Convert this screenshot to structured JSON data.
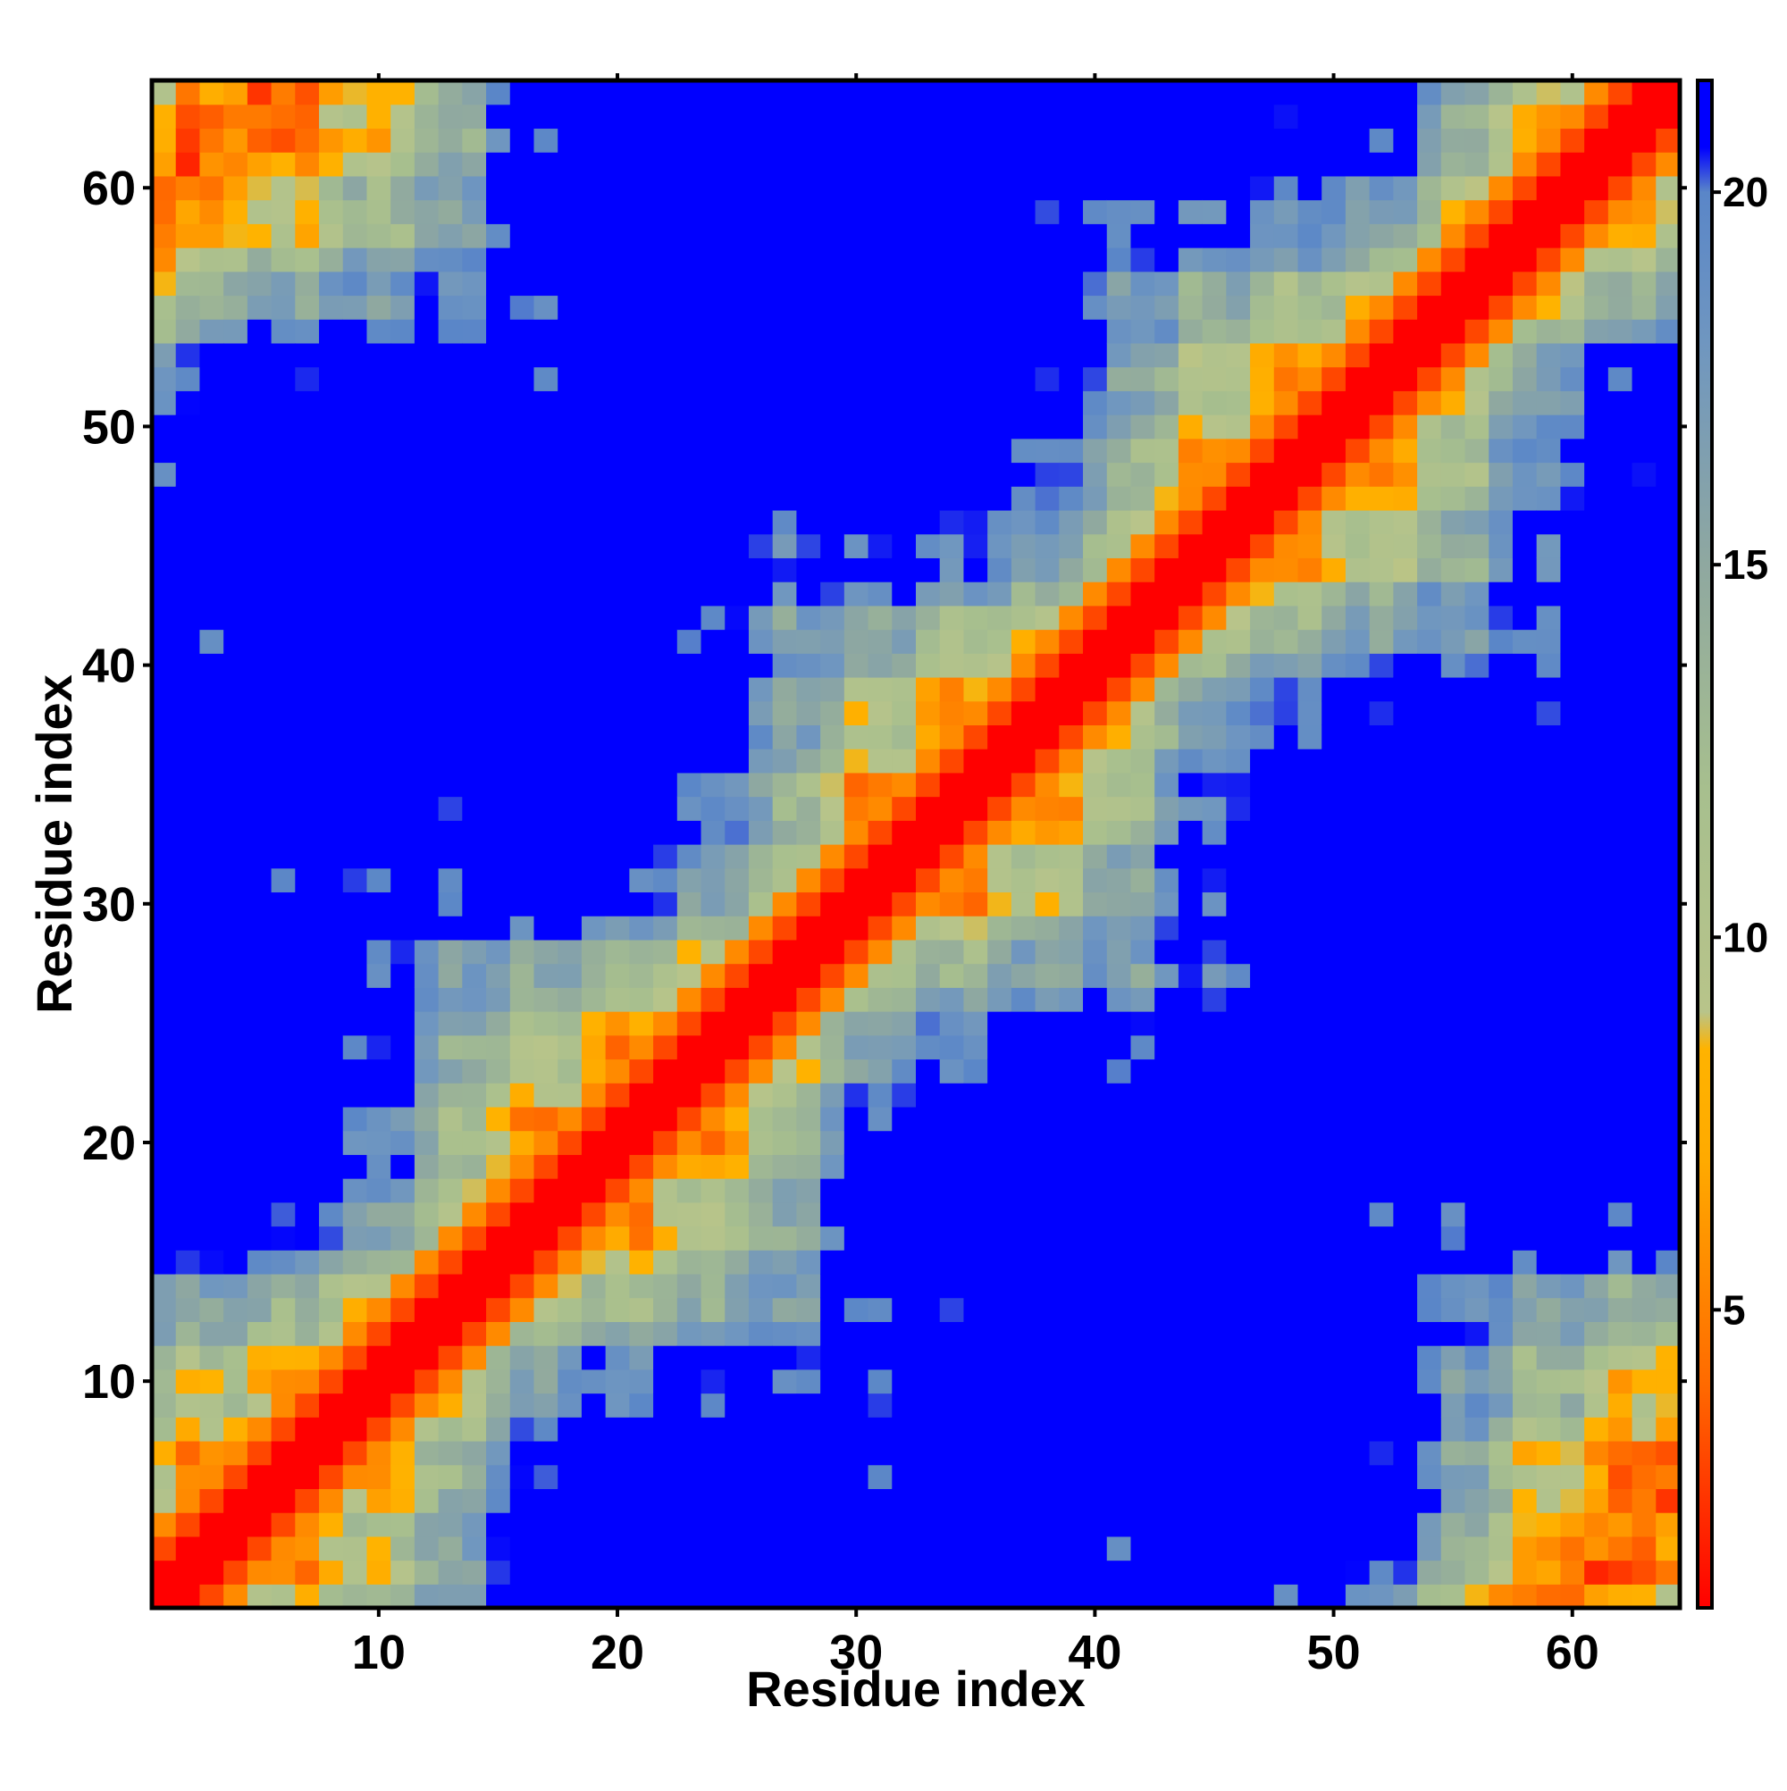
{
  "chart_data": {
    "type": "heatmap",
    "title": "",
    "xlabel": "Residue index",
    "ylabel": "Residue index",
    "n": 64,
    "xlim": [
      1,
      64
    ],
    "ylim": [
      1,
      64
    ],
    "x_ticks": [
      10,
      20,
      30,
      40,
      50,
      60
    ],
    "y_ticks": [
      10,
      20,
      30,
      40,
      50,
      60
    ],
    "x_tick_labels": [
      "10",
      "20",
      "30",
      "40",
      "50",
      "60"
    ],
    "y_tick_labels": [
      "10",
      "20",
      "30",
      "40",
      "50",
      "60"
    ],
    "grid": false,
    "legend": "colorbar-right",
    "colorbar": {
      "range": [
        1,
        21.5
      ],
      "ticks": [
        5,
        10,
        15,
        20
      ],
      "tick_labels": [
        "5",
        "10",
        "15",
        "20"
      ],
      "stops": [
        {
          "value": 1,
          "color": "#ff0000"
        },
        {
          "value": 4,
          "color": "#ff6a00"
        },
        {
          "value": 7,
          "color": "#ffaa00"
        },
        {
          "value": 8.5,
          "color": "#ffb300"
        },
        {
          "value": 9,
          "color": "#b8c48a"
        },
        {
          "value": 12,
          "color": "#a7bf8e"
        },
        {
          "value": 15,
          "color": "#8fa8a0"
        },
        {
          "value": 18,
          "color": "#6f96c0"
        },
        {
          "value": 20,
          "color": "#5a86c8"
        },
        {
          "value": 20.6,
          "color": "#0000ff"
        },
        {
          "value": 21.5,
          "color": "#0000ff"
        }
      ]
    },
    "colors": {
      "near": "#ff0000",
      "close": "#ff6a00",
      "mid": "#ffaa00",
      "green": "#a7bf8e",
      "blue_grey": "#6f96c0",
      "far": "#0000ff"
    },
    "description_note": "Symmetric residue-residue distance map of a 64-residue chain; diagonal distance 1, far pairs saturated at blue."
  }
}
